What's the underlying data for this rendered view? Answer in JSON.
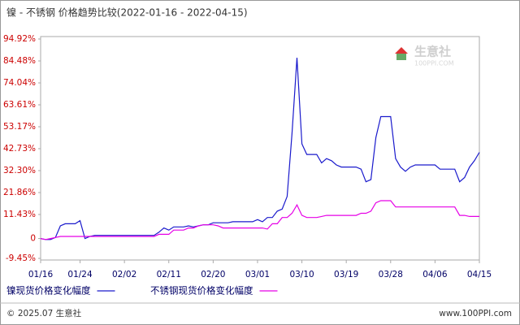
{
  "chart_data": {
    "type": "line",
    "title": "镍 - 不锈钢 价格趋势比较(2022-01-16 - 2022-04-15)",
    "categories": [
      "01/16",
      null,
      null,
      null,
      null,
      null,
      null,
      null,
      "01/24",
      null,
      null,
      null,
      null,
      null,
      null,
      null,
      null,
      "02/02",
      null,
      null,
      null,
      null,
      null,
      null,
      null,
      null,
      "02/11",
      null,
      null,
      null,
      null,
      null,
      null,
      null,
      null,
      "02/20",
      null,
      null,
      null,
      null,
      null,
      null,
      null,
      null,
      "03/01",
      null,
      null,
      null,
      null,
      null,
      null,
      null,
      null,
      "03/10",
      null,
      null,
      null,
      null,
      null,
      null,
      null,
      null,
      "03/19",
      null,
      null,
      null,
      null,
      null,
      null,
      null,
      null,
      "03/28",
      null,
      null,
      null,
      null,
      null,
      null,
      null,
      null,
      "04/06",
      null,
      null,
      null,
      null,
      null,
      null,
      null,
      null,
      "04/15"
    ],
    "series": [
      {
        "name": "镍现货价格变化幅度",
        "color": "#1a1acc",
        "values": [
          0,
          -0.5,
          -0.5,
          0.5,
          6,
          7,
          7,
          7,
          8.5,
          0,
          1,
          1.5,
          1.5,
          1.5,
          1.5,
          1.5,
          1.5,
          1.5,
          1.5,
          1.5,
          1.5,
          1.5,
          1.5,
          1.5,
          3,
          5,
          4,
          5.5,
          5.5,
          5.5,
          6,
          5.5,
          6,
          6.5,
          6.5,
          7.5,
          7.5,
          7.5,
          7.5,
          8,
          8,
          8,
          8,
          8,
          9,
          8,
          10,
          10,
          13,
          14,
          20,
          50,
          86,
          45,
          40,
          40,
          40,
          36,
          38,
          37,
          35,
          34,
          34,
          34,
          34,
          33,
          27,
          28,
          48,
          58,
          58,
          58,
          38,
          34,
          32,
          34,
          35,
          35,
          35,
          35,
          35,
          33,
          33,
          33,
          33,
          27,
          29,
          34,
          37,
          41
        ]
      },
      {
        "name": "不锈钢现货价格变化幅度",
        "color": "#e600e6",
        "values": [
          0,
          -0.5,
          0,
          0.5,
          1,
          1,
          1,
          1,
          1,
          1,
          1,
          1,
          1,
          1,
          1,
          1,
          1,
          1,
          1,
          1,
          1,
          1,
          1,
          1,
          2,
          2,
          2,
          4,
          4,
          4,
          5,
          5,
          6,
          6.5,
          6.5,
          6.5,
          6,
          5,
          5,
          5,
          5,
          5,
          5,
          5,
          5,
          5,
          4.5,
          7,
          7,
          10,
          10,
          12,
          16,
          11,
          10,
          10,
          10,
          10.5,
          11,
          11,
          11,
          11,
          11,
          11,
          11,
          12,
          12,
          13,
          17,
          18,
          18,
          18,
          15,
          15,
          15,
          15,
          15,
          15,
          15,
          15,
          15,
          15,
          15,
          15,
          15,
          11,
          11,
          10.5,
          10.5,
          10.5
        ]
      }
    ],
    "ylim": [
      -9.45,
      94.92
    ],
    "yticks": [
      {
        "value": -9.45,
        "label": "-9.45%"
      },
      0,
      {
        "value": 11.43,
        "label": "11.43%"
      },
      {
        "value": 21.86,
        "label": "21.86%"
      },
      {
        "value": 32.3,
        "label": "32.30%"
      },
      {
        "value": 42.73,
        "label": "42.73%"
      },
      {
        "value": 53.17,
        "label": "53.17%"
      },
      {
        "value": 63.61,
        "label": "63.61%"
      },
      {
        "value": 74.04,
        "label": "74.04%"
      },
      {
        "value": 84.48,
        "label": "84.48%"
      },
      {
        "value": 94.92,
        "label": "94.92%"
      }
    ],
    "grid": false,
    "watermark": {
      "name": "生意社",
      "site": "100PPI.COM"
    },
    "footer": {
      "copyright": "© 2025.07 生意社",
      "url": "www.100PPI.com"
    }
  }
}
